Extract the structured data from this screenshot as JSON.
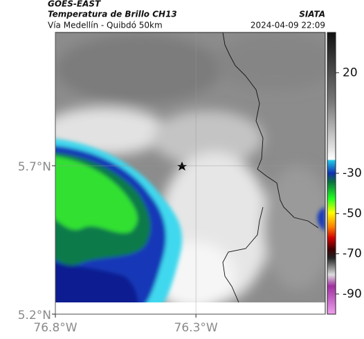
{
  "header": {
    "title": "GOES-EAST",
    "subtitle": "Temperatura de Brillo CH13",
    "source": "SIATA",
    "region": "Vía Medellín - Quibdó 50km",
    "timestamp": "2024-04-09 22:09"
  },
  "map": {
    "xlim": [
      -76.8,
      -75.84
    ],
    "ylim": [
      5.2,
      6.149
    ],
    "xticks": [
      {
        "value": -76.8,
        "label": "76.8°W"
      },
      {
        "value": -76.3,
        "label": "76.3°W"
      }
    ],
    "yticks": [
      {
        "value": 5.2,
        "label": "5.2°N"
      },
      {
        "value": 5.7,
        "label": "5.7°N"
      }
    ],
    "grid": true
  },
  "colorbar": {
    "lim": [
      40,
      -100
    ],
    "ticks": [
      20,
      -30,
      -50,
      -70,
      -90
    ]
  }
}
